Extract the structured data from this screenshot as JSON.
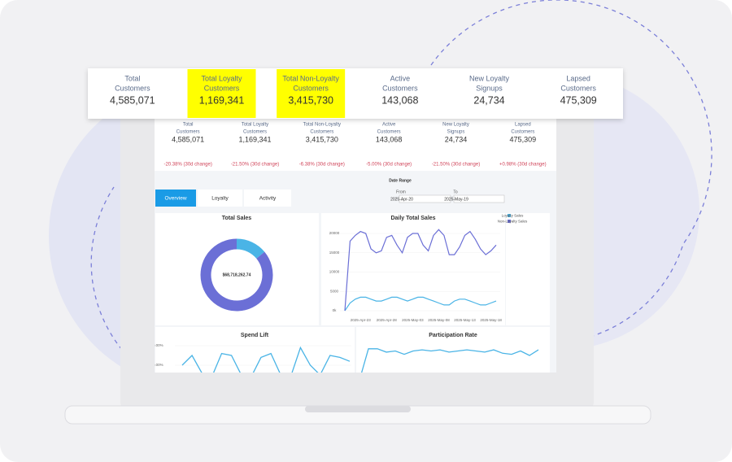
{
  "callout": {
    "kpis": [
      {
        "label": [
          "Total",
          "Customers"
        ],
        "value": "4,585,071",
        "highlight": false
      },
      {
        "label": [
          "Total Loyalty",
          "Customers"
        ],
        "value": "1,169,341",
        "highlight": true
      },
      {
        "label": [
          "Total Non-Loyalty",
          "Customers"
        ],
        "value": "3,415,730",
        "highlight": true
      },
      {
        "label": [
          "Active",
          "Customers"
        ],
        "value": "143,068",
        "highlight": false
      },
      {
        "label": [
          "New Loyalty",
          "Signups"
        ],
        "value": "24,734",
        "highlight": false
      },
      {
        "label": [
          "Lapsed",
          "Customers"
        ],
        "value": "475,309",
        "highlight": false
      }
    ]
  },
  "dashboard": {
    "kpis": [
      {
        "label": [
          "Total",
          "Customers"
        ],
        "value": "4,585,071",
        "change": "-20.38% (30d change)"
      },
      {
        "label": [
          "Total Loyalty",
          "Customers"
        ],
        "value": "1,169,341",
        "change": "-21.50% (30d change)"
      },
      {
        "label": [
          "Total Non-Loyalty",
          "Customers"
        ],
        "value": "3,415,730",
        "change": "-6.38% (30d change)"
      },
      {
        "label": [
          "Active",
          "Customers"
        ],
        "value": "143,068",
        "change": "-5.00% (30d change)"
      },
      {
        "label": [
          "New Loyalty",
          "Signups"
        ],
        "value": "24,734",
        "change": "-21.50% (30d change)"
      },
      {
        "label": [
          "Lapsed",
          "Customers"
        ],
        "value": "475,309",
        "change": "+0.98% (30d change)"
      }
    ],
    "tabs": [
      "Overview",
      "Loyalty",
      "Activity"
    ],
    "active_tab": 0,
    "date_range": {
      "title": "Date Range",
      "from_label": "From",
      "from": "2025-Apr-20",
      "to_label": "To",
      "to": "2025-May-19"
    },
    "total_sales": {
      "title": "Total Sales",
      "center_label": "$68,718,262.74",
      "values": [
        14,
        86
      ],
      "colors": [
        "#4ab4e6",
        "#6b6fd6"
      ]
    },
    "daily_sales": {
      "title": "Daily Total Sales",
      "categories": [
        null,
        null,
        null,
        "2025-Apr-23",
        null,
        null,
        null,
        null,
        "2025-Apr-28",
        null,
        null,
        null,
        null,
        "2025-May-03",
        null,
        null,
        null,
        null,
        "2025-May-08",
        null,
        null,
        null,
        null,
        "2025-May-13",
        null,
        null,
        null,
        null,
        "2025-May-18",
        null
      ],
      "ylim": [
        0,
        22000
      ],
      "yticks": [
        {
          "value": 0,
          "label": "0k"
        },
        5000,
        10000,
        15000,
        20000
      ],
      "series": [
        {
          "name": "Loyalty Sales",
          "color": "#4ab4e6",
          "values": [
            0,
            2000,
            3000,
            3500,
            3500,
            3000,
            2500,
            2500,
            3000,
            3500,
            3500,
            3000,
            2500,
            3000,
            3500,
            3500,
            3000,
            2500,
            2000,
            1500,
            1500,
            2500,
            3000,
            3000,
            2500,
            2000,
            1500,
            1500,
            2000,
            2500
          ]
        },
        {
          "name": "Non-Loyalty Sales",
          "color": "#6b6fd6",
          "values": [
            0,
            18000,
            19500,
            20500,
            20000,
            16000,
            15000,
            15500,
            19000,
            19500,
            17000,
            15000,
            19000,
            20000,
            20000,
            17000,
            15500,
            19500,
            21000,
            19500,
            14500,
            14500,
            16500,
            19500,
            20500,
            18500,
            16000,
            14500,
            15500,
            17000
          ]
        }
      ]
    },
    "spend_lift": {
      "title": "Spend Lift",
      "ylim": [
        0,
        25
      ],
      "yticks": [
        {
          "value": 10,
          "label": "10.00%"
        },
        {
          "value": 20,
          "label": "20.00%"
        }
      ],
      "color": "#4ab4e6",
      "values": [
        10,
        15,
        6,
        4,
        16,
        15,
        5,
        4,
        14,
        16,
        5,
        4,
        19,
        10,
        5,
        15,
        14,
        12
      ]
    },
    "participation": {
      "title": "Participation Rate",
      "ylim": [
        60,
        100
      ],
      "color": "#4ab4e6",
      "values": [
        62,
        90,
        90,
        87,
        88,
        85,
        88,
        89,
        88,
        89,
        87,
        88,
        89,
        88,
        87,
        89,
        86,
        85,
        88,
        84,
        89
      ]
    }
  }
}
